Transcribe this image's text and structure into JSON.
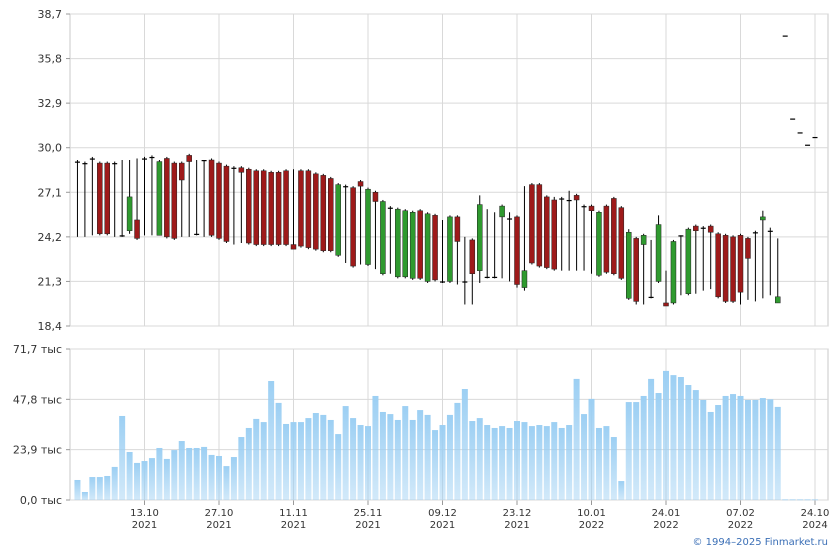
{
  "chart_data": [
    {
      "type": "candlestick",
      "categories": [
        null,
        null,
        null,
        null,
        null,
        null,
        null,
        null,
        null,
        [
          "13.10",
          "2021"
        ],
        null,
        null,
        null,
        null,
        null,
        null,
        null,
        null,
        null,
        [
          "27.10",
          "2021"
        ],
        null,
        null,
        null,
        null,
        null,
        null,
        null,
        null,
        null,
        [
          "11.11",
          "2021"
        ],
        null,
        null,
        null,
        null,
        null,
        null,
        null,
        null,
        null,
        [
          "25.11",
          "2021"
        ],
        null,
        null,
        null,
        null,
        null,
        null,
        null,
        null,
        null,
        [
          "09.12",
          "2021"
        ],
        null,
        null,
        null,
        null,
        null,
        null,
        null,
        null,
        null,
        [
          "23.12",
          "2021"
        ],
        null,
        null,
        null,
        null,
        null,
        null,
        null,
        null,
        null,
        [
          "10.01",
          "2022"
        ],
        null,
        null,
        null,
        null,
        null,
        null,
        null,
        null,
        null,
        [
          "24.01",
          "2022"
        ],
        null,
        null,
        null,
        null,
        null,
        null,
        null,
        null,
        null,
        [
          "07.02",
          "2022"
        ],
        null,
        null,
        null,
        null,
        null,
        null,
        null,
        null,
        null,
        [
          "24.10",
          "2024"
        ]
      ],
      "open": [
        29.1,
        29.0,
        29.3,
        29.0,
        29.0,
        29.0,
        24.3,
        24.6,
        25.3,
        29.3,
        29.4,
        24.3,
        29.3,
        29.0,
        29.0,
        29.5,
        24.4,
        29.2,
        29.2,
        29.0,
        28.8,
        28.7,
        28.7,
        28.6,
        28.5,
        28.5,
        28.4,
        28.4,
        28.5,
        23.7,
        28.5,
        28.5,
        28.3,
        28.2,
        28.0,
        23.0,
        27.5,
        27.4,
        27.8,
        22.4,
        27.1,
        21.8,
        26.1,
        21.6,
        21.6,
        21.5,
        25.9,
        21.3,
        25.6,
        21.3,
        21.3,
        25.5,
        21.3,
        24.0,
        22.0,
        21.6,
        21.6,
        25.5,
        25.4,
        25.5,
        20.9,
        27.6,
        27.6,
        26.8,
        26.6,
        26.7,
        26.6,
        26.9,
        26.2,
        26.2,
        21.7,
        26.2,
        26.7,
        26.1,
        20.2,
        24.1,
        23.7,
        20.3,
        21.3,
        19.9,
        19.9,
        24.3,
        20.5,
        24.9,
        24.8,
        24.9,
        24.4,
        24.3,
        24.2,
        24.3,
        24.1,
        24.5,
        25.3,
        24.6,
        19.9,
        37.3,
        31.9,
        31.0,
        30.2,
        30.7
      ],
      "high": [
        29.2,
        29.1,
        29.4,
        29.1,
        29.1,
        29.1,
        29.2,
        29.2,
        29.3,
        29.4,
        29.5,
        29.2,
        29.4,
        29.1,
        29.1,
        29.6,
        29.2,
        29.2,
        29.3,
        29.1,
        28.9,
        28.8,
        28.8,
        28.7,
        28.6,
        28.6,
        28.5,
        28.5,
        28.6,
        28.6,
        28.6,
        28.6,
        28.4,
        28.3,
        28.1,
        27.7,
        27.6,
        27.5,
        27.9,
        27.4,
        27.2,
        26.6,
        26.2,
        26.1,
        26.0,
        25.9,
        26.0,
        25.8,
        25.7,
        25.3,
        25.6,
        25.6,
        24.2,
        24.1,
        26.9,
        26.0,
        25.8,
        26.3,
        25.8,
        25.6,
        27.5,
        27.7,
        27.7,
        26.9,
        26.8,
        26.8,
        27.2,
        27.0,
        26.3,
        26.3,
        25.9,
        26.3,
        26.8,
        26.2,
        24.7,
        24.2,
        24.4,
        24.0,
        25.6,
        22.0,
        24.0,
        24.3,
        24.8,
        25.0,
        24.9,
        25.0,
        24.5,
        24.4,
        24.3,
        24.4,
        24.2,
        24.6,
        25.9,
        24.8,
        24.1,
        37.3,
        31.9,
        31.0,
        30.2,
        30.7
      ],
      "low": [
        24.2,
        24.2,
        24.3,
        24.3,
        24.3,
        24.2,
        24.2,
        24.4,
        24.0,
        24.3,
        24.3,
        24.3,
        24.1,
        24.0,
        24.2,
        24.2,
        24.3,
        24.2,
        24.2,
        24.0,
        23.8,
        23.7,
        23.8,
        23.7,
        23.6,
        23.6,
        23.6,
        23.6,
        23.6,
        23.4,
        23.5,
        23.4,
        23.3,
        23.2,
        23.2,
        22.9,
        22.5,
        22.2,
        22.4,
        22.3,
        22.1,
        21.7,
        21.8,
        21.5,
        21.5,
        21.4,
        21.4,
        21.2,
        21.3,
        21.2,
        21.2,
        21.1,
        19.8,
        19.8,
        21.2,
        21.5,
        21.5,
        21.5,
        21.3,
        20.9,
        20.7,
        22.4,
        22.2,
        22.1,
        22.0,
        22.0,
        22.0,
        22.0,
        22.0,
        21.8,
        21.6,
        21.8,
        21.7,
        21.4,
        20.1,
        19.8,
        19.8,
        20.2,
        21.2,
        19.7,
        19.8,
        20.4,
        20.4,
        20.5,
        20.7,
        20.8,
        20.2,
        19.9,
        19.9,
        19.8,
        20.1,
        20.0,
        20.2,
        20.4,
        19.9,
        37.3,
        31.9,
        31.0,
        30.2,
        30.7
      ],
      "close": [
        29.1,
        29.0,
        29.3,
        24.4,
        24.4,
        29.0,
        24.3,
        26.8,
        24.1,
        29.3,
        29.4,
        29.1,
        24.2,
        24.1,
        27.9,
        29.1,
        24.4,
        29.2,
        24.3,
        24.1,
        23.9,
        28.7,
        28.4,
        23.8,
        23.7,
        23.7,
        23.7,
        23.7,
        23.7,
        23.4,
        23.6,
        23.5,
        23.4,
        23.3,
        23.3,
        27.6,
        27.5,
        22.3,
        27.5,
        27.3,
        26.5,
        26.5,
        26.1,
        26.0,
        25.9,
        25.8,
        21.5,
        25.7,
        21.4,
        21.3,
        25.5,
        23.9,
        21.3,
        21.8,
        26.3,
        21.6,
        21.6,
        26.2,
        25.4,
        21.1,
        22.0,
        22.5,
        22.3,
        22.2,
        22.1,
        26.7,
        26.6,
        26.6,
        26.2,
        25.9,
        25.8,
        21.9,
        21.8,
        21.5,
        24.5,
        20.0,
        24.3,
        20.3,
        25.0,
        19.7,
        23.9,
        24.3,
        24.7,
        24.6,
        24.8,
        24.5,
        20.3,
        20.0,
        20.0,
        20.6,
        22.8,
        24.5,
        25.5,
        24.6,
        20.3,
        37.3,
        31.9,
        31.0,
        30.2,
        30.7
      ],
      "up_color": "#2f9a2f",
      "down_color": "#9e1a1a",
      "flat_color": "#000000",
      "ylim": [
        18.4,
        38.7
      ],
      "yticks": [
        {
          "value": 18.4,
          "label": "18,4"
        },
        {
          "value": 21.3,
          "label": "21,3"
        },
        {
          "value": 24.2,
          "label": "24,2"
        },
        {
          "value": 27.1,
          "label": "27,1"
        },
        {
          "value": 30.0,
          "label": "30,0"
        },
        {
          "value": 32.9,
          "label": "32,9"
        },
        {
          "value": 35.8,
          "label": "35,8"
        },
        {
          "value": 38.7,
          "label": "38,7"
        }
      ],
      "grid": true
    },
    {
      "type": "bar",
      "values": [
        9.5,
        3.8,
        10.9,
        10.9,
        11.4,
        15.7,
        39.9,
        22.8,
        17.6,
        18.5,
        19.9,
        24.7,
        19.5,
        23.7,
        28.0,
        24.7,
        24.7,
        25.2,
        21.4,
        20.9,
        16.1,
        20.4,
        29.9,
        34.2,
        38.5,
        37.0,
        56.5,
        46.1,
        36.1,
        37.0,
        37.0,
        38.9,
        41.3,
        40.4,
        38.0,
        31.3,
        44.6,
        38.9,
        35.6,
        35.1,
        49.4,
        41.8,
        40.8,
        38.0,
        44.6,
        38.0,
        42.7,
        40.4,
        33.2,
        35.6,
        40.4,
        46.1,
        52.7,
        37.5,
        38.9,
        35.6,
        34.2,
        35.1,
        34.2,
        37.5,
        37.0,
        35.1,
        35.6,
        35.1,
        37.0,
        34.2,
        35.6,
        57.5,
        40.8,
        48.0,
        34.2,
        35.1,
        29.9,
        9.0,
        46.5,
        46.5,
        49.4,
        57.5,
        50.8,
        61.3,
        59.3,
        58.4,
        54.6,
        52.2,
        47.5,
        41.8,
        45.1,
        49.4,
        50.3,
        49.4,
        47.5,
        47.5,
        48.4,
        47.8,
        44.2,
        0.3,
        0.3,
        0.3,
        0.3,
        0.3
      ],
      "color": "#9ccff3",
      "ylim": [
        0,
        71.7
      ],
      "yticks": [
        {
          "value": 0,
          "label": "0,0 тыс"
        },
        {
          "value": 23.9,
          "label": "23,9 тыс"
        },
        {
          "value": 47.8,
          "label": "47,8 тыс"
        },
        {
          "value": 71.7,
          "label": "71,7 тыс"
        }
      ],
      "grid": true
    }
  ],
  "credit": "© 1994–2025 Finmarket.ru"
}
